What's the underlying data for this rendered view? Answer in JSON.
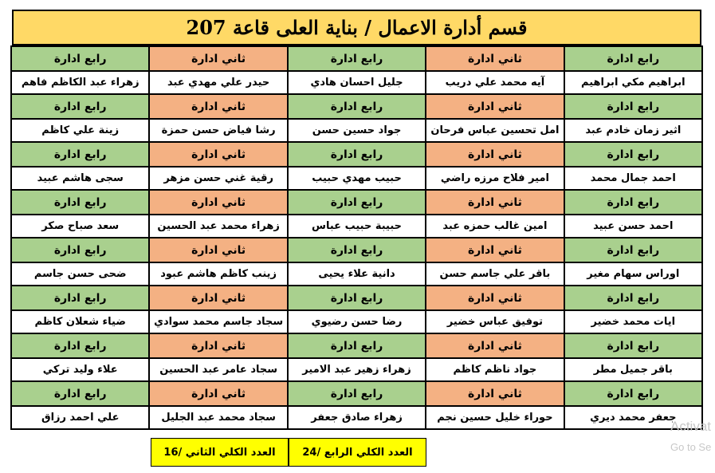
{
  "title": "قسم أدارة الاعمال / بناية العلى قاعة 207",
  "colors": {
    "fourth": "#a9d08e",
    "second": "#f4b183",
    "title_bg": "#ffd966",
    "totals_bg": "#ffff00"
  },
  "rows": [
    {
      "headers": [
        "رابع ادارة",
        "ثاني ادارة",
        "رابع ادارة",
        "ثاني ادارة",
        "رابع ادارة"
      ],
      "names": [
        "ابراهيم مكي ابراهيم",
        "آيه محمد علي دريب",
        "جليل احسان هادي",
        "حيدر علي مهدي عبد",
        "زهراء عبد الكاظم فاهم"
      ]
    },
    {
      "headers": [
        "رابع ادارة",
        "ثاني ادارة",
        "رابع ادارة",
        "ثاني ادارة",
        "رابع ادارة"
      ],
      "names": [
        "اثير زمان خادم عبد",
        "امل تحسين عباس فرحان",
        "جواد حسين حسن",
        "رشا فياض حسن حمزة",
        "زينة علي كاظم"
      ]
    },
    {
      "headers": [
        "رابع ادارة",
        "ثاني ادارة",
        "رابع ادارة",
        "ثاني ادارة",
        "رابع ادارة"
      ],
      "names": [
        "احمد جمال محمد",
        "امير فلاح مرزه راضي",
        "حبيب مهدي حبيب",
        "رقية غني حسن مزهر",
        "سجى هاشم عبيد"
      ]
    },
    {
      "headers": [
        "رابع ادارة",
        "ثاني ادارة",
        "رابع ادارة",
        "ثاني ادارة",
        "رابع ادارة"
      ],
      "names": [
        "احمد حسن عبيد",
        "امين غالب حمزه عبد",
        "حبيبة حبيب عباس",
        "زهراء محمد عبد الحسين",
        "سعد صباح صكر"
      ]
    },
    {
      "headers": [
        "رابع ادارة",
        "ثاني ادارة",
        "رابع ادارة",
        "ثاني ادارة",
        "رابع ادارة"
      ],
      "names": [
        "اوراس سهام مغير",
        "باقر علي جاسم حسن",
        "دانية علاء يحيى",
        "زينب كاظم هاشم عبود",
        "ضحى حسن جاسم"
      ]
    },
    {
      "headers": [
        "رابع ادارة",
        "ثاني ادارة",
        "رابع ادارة",
        "ثاني ادارة",
        "رابع ادارة"
      ],
      "names": [
        "ايات محمد خضير",
        "توفيق عباس خضير",
        "رضا حسن رضيوي",
        "سجاد جاسم محمد سوادي",
        "ضياء شعلان كاظم"
      ]
    },
    {
      "headers": [
        "رابع ادارة",
        "ثاني ادارة",
        "رابع ادارة",
        "ثاني ادارة",
        "رابع ادارة"
      ],
      "names": [
        "باقر جميل مطر",
        "جواد ناظم كاظم",
        "زهراء زهير عبد الامير",
        "سجاد عامر عبد الحسين",
        "علاء وليد تركي"
      ]
    },
    {
      "headers": [
        "رابع ادارة",
        "ثاني ادارة",
        "رابع ادارة",
        "ثاني ادارة",
        "رابع ادارة"
      ],
      "names": [
        "جعفر محمد ديري",
        "حوراء خليل حسين نجم",
        "زهراء صادق جعفر",
        "سجاد محمد عبد الجليل",
        "علي احمد رزاق"
      ]
    }
  ],
  "totals": {
    "fourth": "العدد الكلي الرابع /24",
    "second": "العدد الكلي الثاني /16"
  },
  "watermark": {
    "line1": "Activat",
    "line2": "Go to Se"
  }
}
